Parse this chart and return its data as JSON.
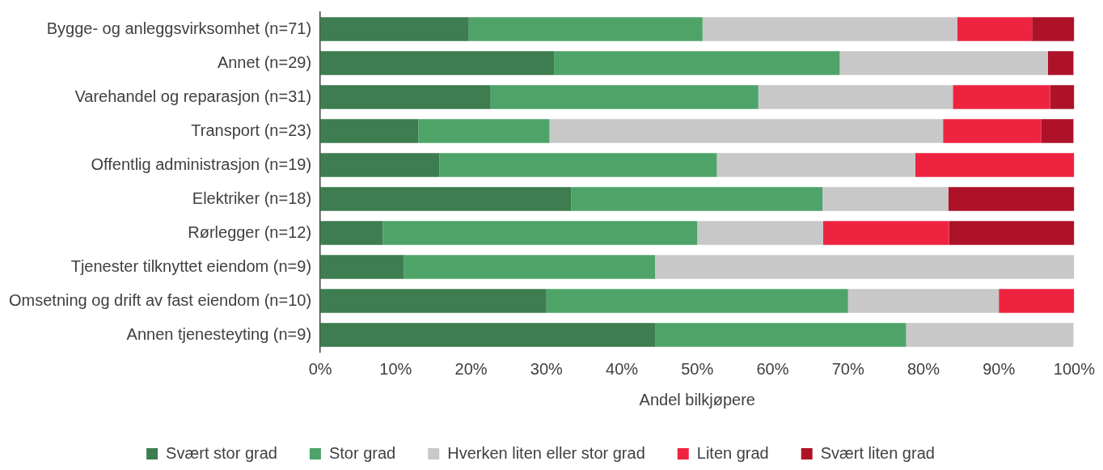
{
  "chart_data": {
    "type": "bar",
    "orientation": "horizontal",
    "stacked": true,
    "xlabel": "Andel bilkjøpere",
    "categories": [
      "Bygge- og anleggsvirksomhet (n=71)",
      "Annet (n=29)",
      "Varehandel og reparasjon (n=31)",
      "Transport (n=23)",
      "Offentlig administrasjon (n=19)",
      "Elektriker (n=18)",
      "Rørlegger (n=12)",
      "Tjenester tilknyttet eiendom (n=9)",
      "Omsetning og drift av fast eiendom (n=10)",
      "Annen tjenesteyting (n=9)"
    ],
    "series": [
      {
        "name": "Svært stor grad",
        "color": "#3d7d50",
        "values": [
          19.7,
          31.0,
          22.6,
          13.0,
          15.8,
          33.3,
          8.3,
          11.1,
          30,
          44.4
        ]
      },
      {
        "name": "Stor grad",
        "color": "#4ea468",
        "values": [
          31.0,
          37.9,
          35.5,
          17.4,
          36.8,
          33.3,
          41.7,
          33.3,
          40,
          33.3
        ]
      },
      {
        "name": "Hverken liten eller stor grad",
        "color": "#c8c8c8",
        "values": [
          33.8,
          27.6,
          25.8,
          52.2,
          26.3,
          16.7,
          16.7,
          55.6,
          20,
          22.2
        ]
      },
      {
        "name": "Liten grad",
        "color": "#ee2340",
        "values": [
          9.9,
          0,
          12.9,
          13.0,
          21.1,
          0,
          16.7,
          0,
          10,
          0
        ]
      },
      {
        "name": "Svært liten grad",
        "color": "#ae1228",
        "values": [
          5.6,
          3.4,
          3.2,
          4.3,
          0,
          16.7,
          16.6,
          0,
          0,
          0
        ]
      }
    ],
    "xlim": [
      0,
      100
    ],
    "xticks": [
      {
        "value": 0,
        "label": "0%"
      },
      {
        "value": 10,
        "label": "10%"
      },
      {
        "value": 20,
        "label": "20%"
      },
      {
        "value": 30,
        "label": "30%"
      },
      {
        "value": 40,
        "label": "40%"
      },
      {
        "value": 50,
        "label": "50%"
      },
      {
        "value": 60,
        "label": "60%"
      },
      {
        "value": 70,
        "label": "70%"
      },
      {
        "value": 80,
        "label": "80%"
      },
      {
        "value": 90,
        "label": "90%"
      },
      {
        "value": 100,
        "label": "100%"
      }
    ],
    "grid": false,
    "legend": "bottom"
  }
}
